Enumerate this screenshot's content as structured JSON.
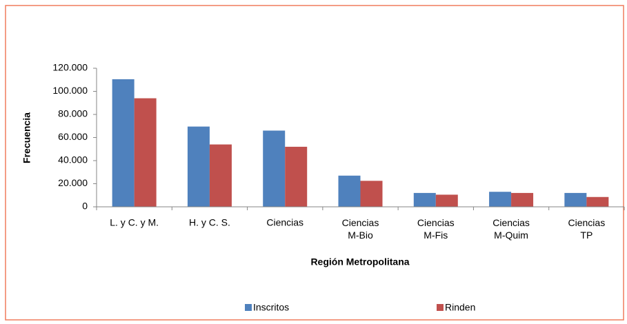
{
  "chart_data": {
    "type": "bar",
    "x_label": "Región Metropolitana",
    "y_label": "Frecuencia",
    "categories": [
      "L. y C. y M.",
      "H. y C. S.",
      "Ciencias",
      "Ciencias\nM-Bio",
      "Ciencias\nM-Fis",
      "Ciencias\nM-Quim",
      "Ciencias\nTP"
    ],
    "series": [
      {
        "name": "Inscritos",
        "color": "#4f81bd",
        "values": [
          110500,
          69500,
          66000,
          27000,
          12000,
          13000,
          12000
        ]
      },
      {
        "name": "Rinden",
        "color": "#c0504d",
        "values": [
          94000,
          54000,
          52000,
          22500,
          10500,
          12000,
          8500
        ]
      }
    ],
    "ylim": [
      0,
      120000
    ],
    "yticks": [
      0,
      {
        "value": 20000,
        "label": "20.000"
      },
      {
        "value": 40000,
        "label": "40.000"
      },
      {
        "value": 60000,
        "label": "60.000"
      },
      {
        "value": 80000,
        "label": "80.000"
      },
      {
        "value": 100000,
        "label": "100.000"
      },
      {
        "value": 120000,
        "label": "120.000"
      }
    ],
    "grid": false,
    "legend": "bottom"
  }
}
